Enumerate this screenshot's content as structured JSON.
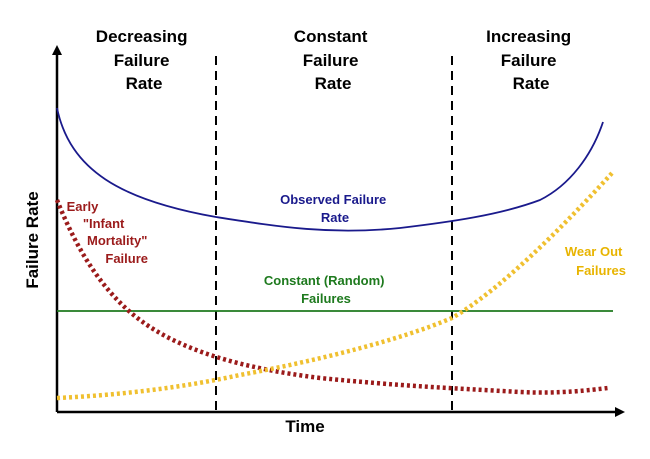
{
  "regions": [
    {
      "lines": [
        "Decreasing",
        "Failure",
        "Rate"
      ]
    },
    {
      "lines": [
        "Constant",
        "Failure",
        "Rate"
      ]
    },
    {
      "lines": [
        "Increasing",
        "Failure",
        "Rate"
      ]
    }
  ],
  "axes": {
    "x_label": "Time",
    "y_label": "Failure Rate"
  },
  "annotations": {
    "observed": {
      "lines": [
        "Observed Failure",
        "Rate"
      ],
      "color": "#1a1a8c"
    },
    "infant": {
      "lines": [
        "Early",
        "\"Infant",
        "Mortality\"",
        "Failure"
      ],
      "color": "#9b1b1b"
    },
    "constant": {
      "lines": [
        "Constant (Random)",
        "Failures"
      ],
      "color": "#1e7a1e"
    },
    "wearout": {
      "lines": [
        "Wear Out",
        "Failures"
      ],
      "color": "#e8b400"
    }
  },
  "curves": {
    "observed_color": "#1a1a8c",
    "infant_color": "#9b1b1b",
    "constant_color": "#1e7a1e",
    "wearout_color": "#f0c030"
  }
}
